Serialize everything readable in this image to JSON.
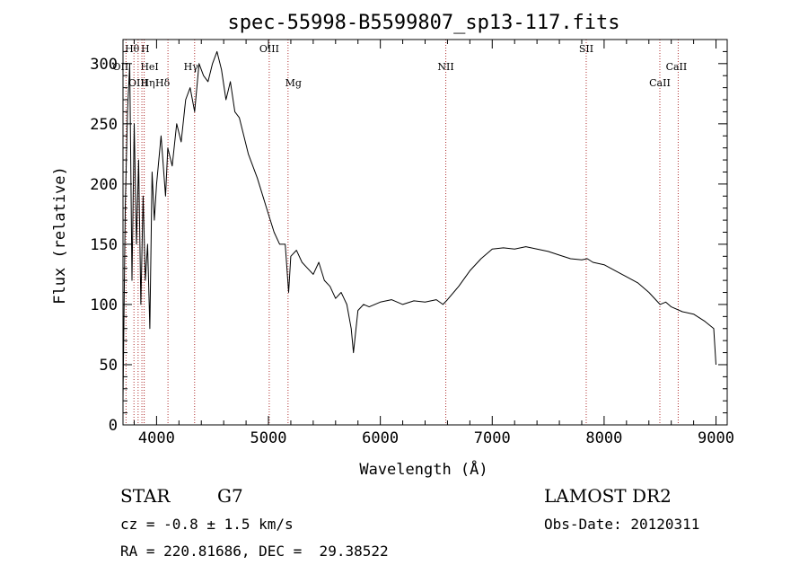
{
  "chart_data": {
    "type": "line",
    "title": "spec-55998-B5599807_sp13-117.fits",
    "xlabel": "Wavelength (Å)",
    "ylabel": "Flux (relative)",
    "xlim": [
      3700,
      9100
    ],
    "ylim": [
      0,
      320
    ],
    "xticks": [
      4000,
      5000,
      6000,
      7000,
      8000,
      9000
    ],
    "yticks": [
      0,
      50,
      100,
      150,
      200,
      250,
      300
    ],
    "grid": false,
    "series": [
      {
        "color": "#000000",
        "x": [
          3700,
          3720,
          3740,
          3760,
          3780,
          3800,
          3820,
          3840,
          3860,
          3880,
          3900,
          3920,
          3940,
          3960,
          3980,
          4000,
          4040,
          4080,
          4100,
          4140,
          4180,
          4220,
          4260,
          4300,
          4340,
          4380,
          4420,
          4460,
          4500,
          4540,
          4580,
          4620,
          4660,
          4700,
          4740,
          4780,
          4820,
          4860,
          4900,
          4950,
          5000,
          5050,
          5100,
          5150,
          5180,
          5200,
          5250,
          5300,
          5350,
          5400,
          5450,
          5500,
          5550,
          5600,
          5650,
          5700,
          5740,
          5760,
          5800,
          5850,
          5900,
          5950,
          6000,
          6100,
          6200,
          6300,
          6400,
          6500,
          6560,
          6600,
          6700,
          6800,
          6900,
          7000,
          7100,
          7200,
          7300,
          7400,
          7500,
          7600,
          7700,
          7800,
          7850,
          7900,
          8000,
          8100,
          8200,
          8300,
          8400,
          8500,
          8550,
          8600,
          8700,
          8800,
          8900,
          8980,
          9000
        ],
        "y": [
          20,
          180,
          260,
          300,
          120,
          250,
          150,
          220,
          100,
          190,
          120,
          150,
          80,
          210,
          170,
          200,
          240,
          190,
          230,
          215,
          250,
          235,
          270,
          280,
          260,
          300,
          290,
          285,
          300,
          310,
          295,
          270,
          285,
          260,
          255,
          240,
          225,
          215,
          205,
          190,
          175,
          160,
          150,
          150,
          110,
          140,
          145,
          135,
          130,
          125,
          135,
          120,
          115,
          105,
          110,
          100,
          80,
          60,
          95,
          100,
          98,
          100,
          102,
          104,
          100,
          103,
          102,
          104,
          100,
          104,
          115,
          128,
          138,
          146,
          147,
          146,
          148,
          146,
          144,
          141,
          138,
          137,
          138,
          135,
          133,
          128,
          123,
          118,
          110,
          100,
          102,
          98,
          94,
          92,
          86,
          80,
          50
        ]
      }
    ],
    "line_markers": [
      {
        "label": "Hθ",
        "x": 3798
      },
      {
        "label": "H",
        "x": 3835
      },
      {
        "label": "OII",
        "x": 3727
      },
      {
        "label": "HeI",
        "x": 3889
      },
      {
        "label": "OIII",
        "x": 3869
      },
      {
        "label": "Hη",
        "x": 3889
      },
      {
        "label": "Hδ",
        "x": 4102
      },
      {
        "label": "Hγ",
        "x": 4340
      },
      {
        "label": "OIII",
        "x": 5007
      },
      {
        "label": "Mg",
        "x": 5175
      },
      {
        "label": "NII",
        "x": 6585
      },
      {
        "label": "SII",
        "x": 7840
      },
      {
        "label": "CaII",
        "x": 8662
      },
      {
        "label": "CaII",
        "x": 8498
      }
    ],
    "marker_color": "#b03030"
  },
  "info": {
    "class": "STAR",
    "subclass": "G7",
    "survey": "LAMOST DR2",
    "cz": "cz = -0.8 ± 1.5 km/s",
    "obs_date": "Obs-Date: 20120311",
    "radec": "RA = 220.81686, DEC =  29.38522"
  }
}
